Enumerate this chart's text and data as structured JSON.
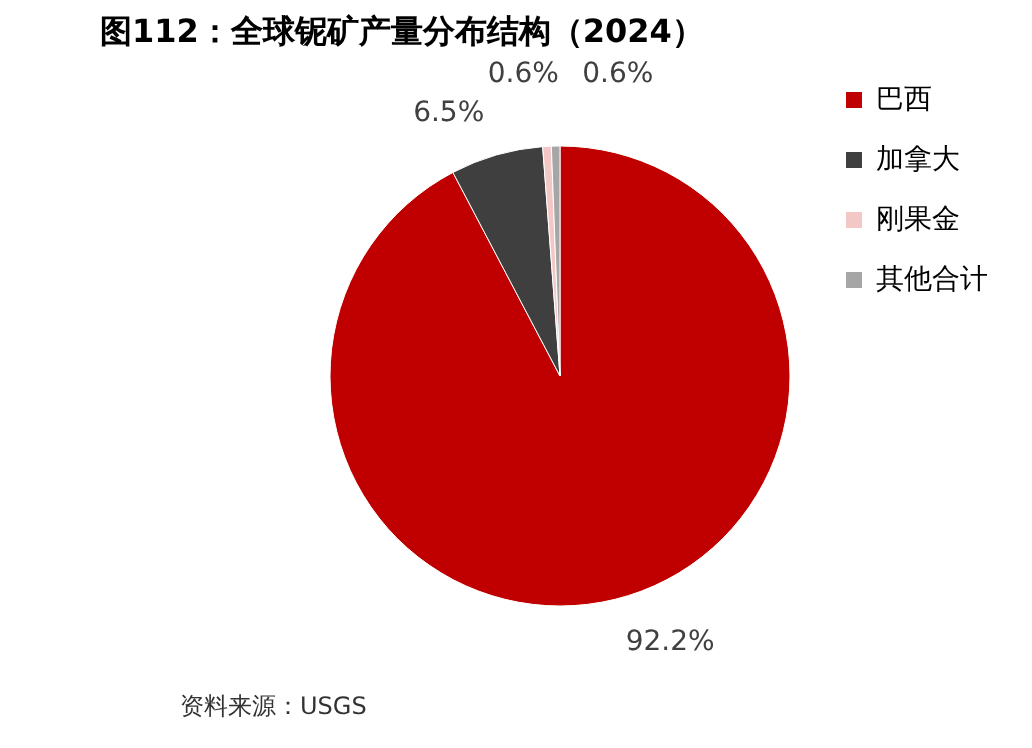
{
  "chart_data": {
    "type": "pie",
    "title": "图112：全球铌矿产量分布结构（2024）",
    "categories": [
      "巴西",
      "加拿大",
      "刚果金",
      "其他合计"
    ],
    "values": [
      92.2,
      6.5,
      0.6,
      0.6
    ],
    "colors": [
      "#c00000",
      "#3f3f3f",
      "#f4c7c7",
      "#a6a6a6"
    ],
    "value_labels": [
      "92.2%",
      "6.5%",
      "0.6%",
      "0.6%"
    ],
    "legend": "right",
    "annotations": [
      "资料来源：USGS"
    ]
  }
}
